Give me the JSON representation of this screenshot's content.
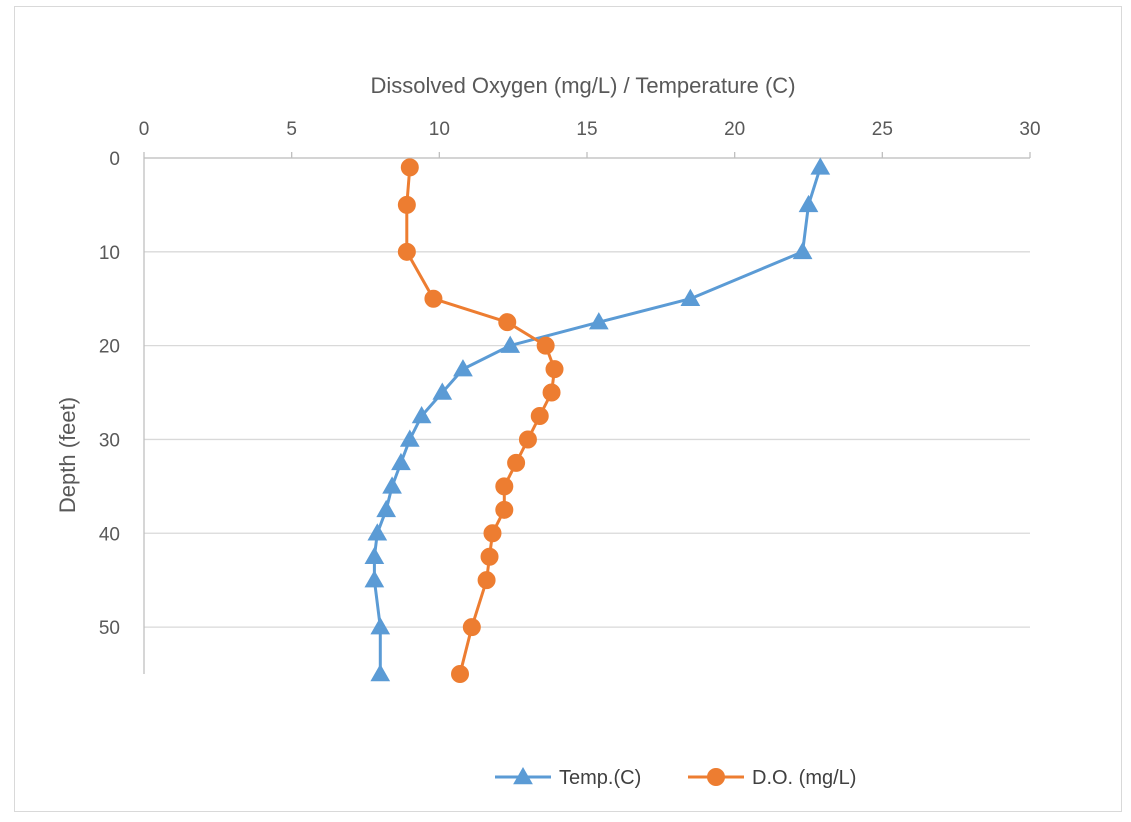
{
  "chart_data": {
    "type": "line",
    "title": "",
    "xlabel": "Dissolved Oxygen (mg/L) / Temperature (C)",
    "ylabel": "Depth (feet)",
    "xlim": [
      0,
      30
    ],
    "ylim": [
      0,
      55
    ],
    "x_ticks": [
      0,
      5,
      10,
      15,
      20,
      25,
      30
    ],
    "y_ticks": [
      0,
      10,
      20,
      30,
      40,
      50
    ],
    "x_axis_position": "top",
    "y_axis_inverted": true,
    "grid": true,
    "legend_position": "bottom",
    "series": [
      {
        "name": "Temp.(C)",
        "color": "#5b9bd5",
        "marker": "triangle",
        "points": [
          [
            22.9,
            1
          ],
          [
            22.5,
            5
          ],
          [
            22.3,
            10
          ],
          [
            18.5,
            15
          ],
          [
            15.4,
            17.5
          ],
          [
            12.4,
            20
          ],
          [
            10.8,
            22.5
          ],
          [
            10.1,
            25
          ],
          [
            9.4,
            27.5
          ],
          [
            9.0,
            30
          ],
          [
            8.7,
            32.5
          ],
          [
            8.4,
            35
          ],
          [
            8.2,
            37.5
          ],
          [
            7.9,
            40
          ],
          [
            7.8,
            42.5
          ],
          [
            7.8,
            45
          ],
          [
            8.0,
            50
          ],
          [
            8.0,
            55
          ]
        ]
      },
      {
        "name": "D.O. (mg/L)",
        "color": "#ed7d31",
        "marker": "circle",
        "points": [
          [
            9.0,
            1
          ],
          [
            8.9,
            5
          ],
          [
            8.9,
            10
          ],
          [
            9.8,
            15
          ],
          [
            12.3,
            17.5
          ],
          [
            13.6,
            20
          ],
          [
            13.9,
            22.5
          ],
          [
            13.8,
            25
          ],
          [
            13.4,
            27.5
          ],
          [
            13.0,
            30
          ],
          [
            12.6,
            32.5
          ],
          [
            12.2,
            35
          ],
          [
            12.2,
            37.5
          ],
          [
            11.8,
            40
          ],
          [
            11.7,
            42.5
          ],
          [
            11.6,
            45
          ],
          [
            11.1,
            50
          ],
          [
            10.7,
            55
          ]
        ]
      }
    ]
  }
}
